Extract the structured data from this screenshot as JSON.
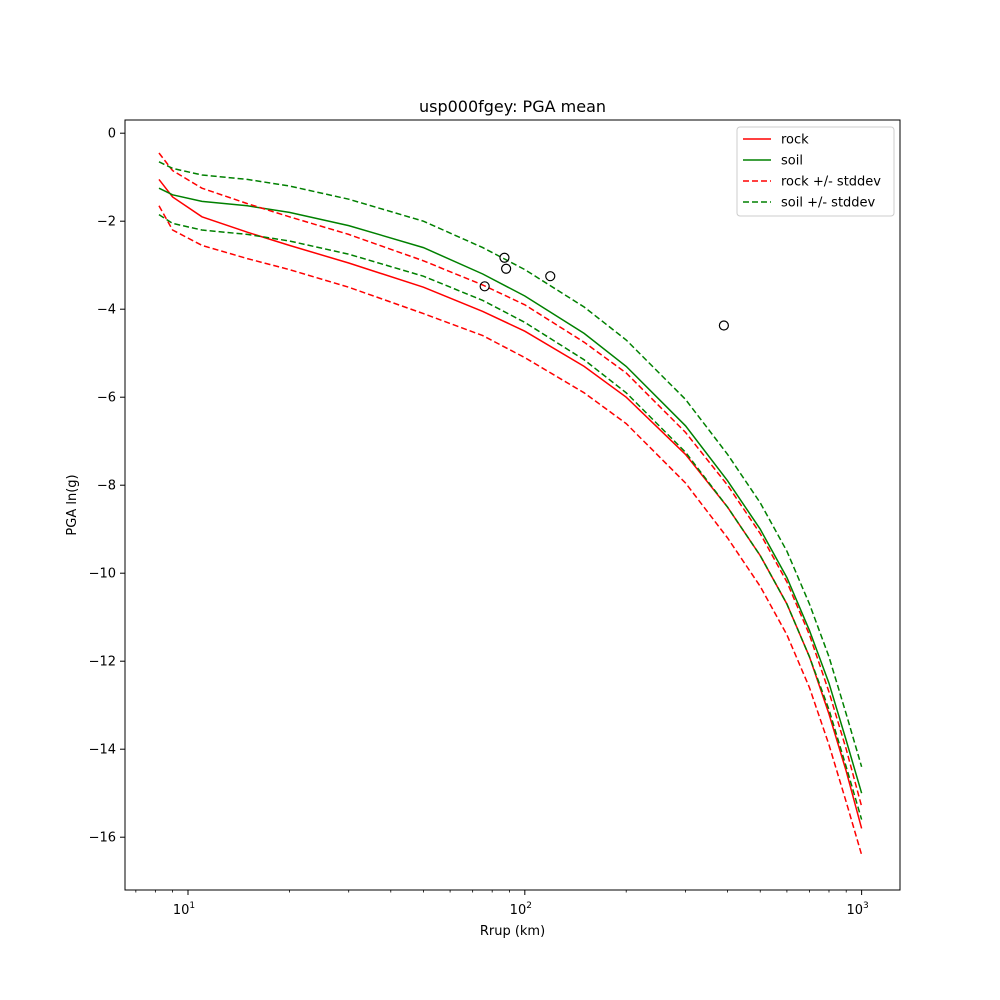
{
  "chart_data": {
    "type": "line",
    "title": "usp000fgey: PGA mean",
    "xlabel": "Rrup (km)",
    "ylabel": "PGA ln(g)",
    "xscale": "log",
    "xlim": [
      6.5,
      1300
    ],
    "ylim": [
      -17.2,
      0.3
    ],
    "xticks": [
      {
        "value": 10,
        "label": "10",
        "exp": "1"
      },
      {
        "value": 100,
        "label": "10",
        "exp": "2"
      },
      {
        "value": 1000,
        "label": "10",
        "exp": "3"
      }
    ],
    "yticks": [
      {
        "value": 0,
        "label": "0"
      },
      {
        "value": -2,
        "label": "−2"
      },
      {
        "value": -4,
        "label": "−4"
      },
      {
        "value": -6,
        "label": "−6"
      },
      {
        "value": -8,
        "label": "−8"
      },
      {
        "value": -10,
        "label": "−10"
      },
      {
        "value": -12,
        "label": "−12"
      },
      {
        "value": -14,
        "label": "−14"
      },
      {
        "value": -16,
        "label": "−16"
      }
    ],
    "grid": false,
    "legend_position": "top-right",
    "colors": {
      "rock": "#ff0000",
      "soil": "#008000",
      "observed": "#000000"
    },
    "series": [
      {
        "name": "rock",
        "color": "#ff0000",
        "dash": false,
        "x": [
          8.2,
          9,
          11,
          15,
          20,
          30,
          50,
          75,
          100,
          150,
          200,
          300,
          400,
          500,
          600,
          700,
          800,
          900,
          1000
        ],
        "y": [
          -1.05,
          -1.45,
          -1.9,
          -2.25,
          -2.55,
          -2.95,
          -3.5,
          -4.05,
          -4.5,
          -5.3,
          -6.0,
          -7.3,
          -8.5,
          -9.6,
          -10.7,
          -11.9,
          -13.2,
          -14.5,
          -15.8
        ]
      },
      {
        "name": "soil",
        "color": "#008000",
        "dash": false,
        "x": [
          8.2,
          9,
          11,
          15,
          20,
          30,
          50,
          75,
          100,
          150,
          200,
          300,
          400,
          500,
          600,
          700,
          800,
          900,
          1000
        ],
        "y": [
          -1.25,
          -1.4,
          -1.55,
          -1.65,
          -1.8,
          -2.1,
          -2.6,
          -3.2,
          -3.7,
          -4.55,
          -5.3,
          -6.65,
          -7.9,
          -9.0,
          -10.1,
          -11.3,
          -12.5,
          -13.8,
          -15.0
        ]
      },
      {
        "name": "rock +/- stddev",
        "color": "#ff0000",
        "dash": true,
        "x": [
          8.2,
          9,
          11,
          15,
          20,
          30,
          50,
          75,
          100,
          150,
          200,
          300,
          400,
          500,
          600,
          700,
          800,
          900,
          1000
        ],
        "y": [
          -0.45,
          -0.85,
          -1.25,
          -1.6,
          -1.9,
          -2.3,
          -2.9,
          -3.45,
          -3.9,
          -4.75,
          -5.45,
          -6.8,
          -8.0,
          -9.1,
          -10.2,
          -11.4,
          -12.7,
          -14.0,
          -15.3
        ]
      },
      {
        "name": "",
        "color": "#ff0000",
        "dash": true,
        "x": [
          8.2,
          9,
          11,
          15,
          20,
          30,
          50,
          75,
          100,
          150,
          200,
          300,
          400,
          500,
          600,
          700,
          800,
          900,
          1000
        ],
        "y": [
          -1.65,
          -2.2,
          -2.55,
          -2.85,
          -3.1,
          -3.5,
          -4.1,
          -4.6,
          -5.1,
          -5.9,
          -6.6,
          -7.95,
          -9.2,
          -10.3,
          -11.4,
          -12.6,
          -13.9,
          -15.2,
          -16.4
        ]
      },
      {
        "name": "soil +/- stddev",
        "color": "#008000",
        "dash": true,
        "x": [
          8.2,
          9,
          11,
          15,
          20,
          30,
          50,
          75,
          100,
          150,
          200,
          300,
          400,
          500,
          600,
          700,
          800,
          900,
          1000
        ],
        "y": [
          -0.65,
          -0.8,
          -0.95,
          -1.05,
          -1.2,
          -1.5,
          -2.0,
          -2.6,
          -3.1,
          -3.95,
          -4.7,
          -6.05,
          -7.3,
          -8.4,
          -9.5,
          -10.7,
          -11.9,
          -13.2,
          -14.4
        ]
      },
      {
        "name": "",
        "color": "#008000",
        "dash": true,
        "x": [
          8.2,
          9,
          11,
          15,
          20,
          30,
          50,
          75,
          100,
          150,
          200,
          300,
          400,
          500,
          600,
          700,
          800,
          900,
          1000
        ],
        "y": [
          -1.85,
          -2.05,
          -2.2,
          -2.3,
          -2.45,
          -2.75,
          -3.25,
          -3.8,
          -4.3,
          -5.15,
          -5.9,
          -7.25,
          -8.5,
          -9.6,
          -10.7,
          -11.9,
          -13.1,
          -14.4,
          -15.6
        ]
      }
    ],
    "observations": {
      "x": [
        76,
        87,
        88,
        119,
        390
      ],
      "y": [
        -3.48,
        -2.83,
        -3.08,
        -3.25,
        -4.37
      ]
    },
    "legend": [
      "rock",
      "soil",
      "rock +/- stddev",
      "soil +/- stddev"
    ]
  }
}
